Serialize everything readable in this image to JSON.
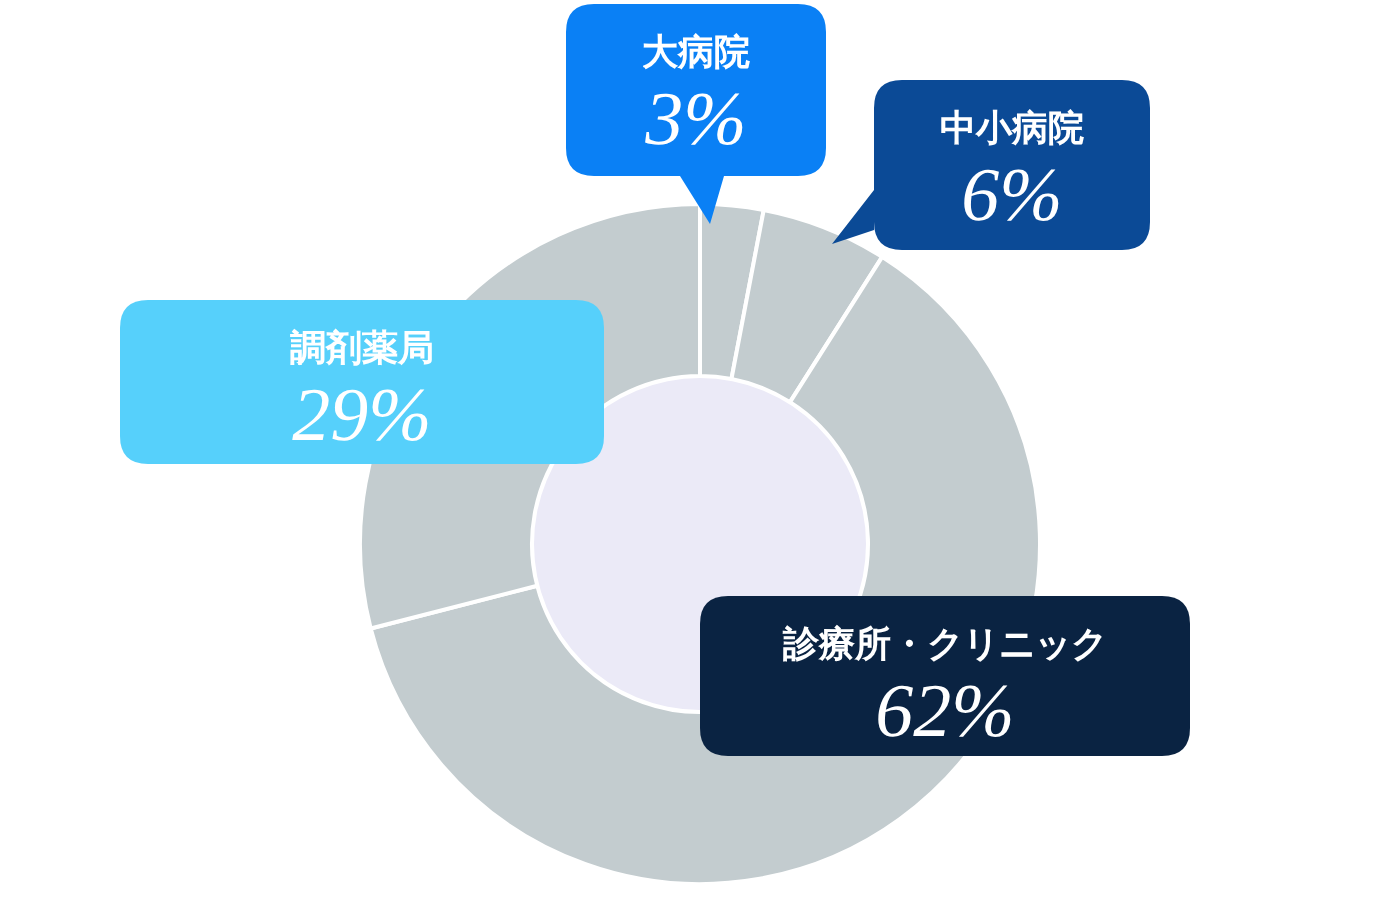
{
  "chart_data": {
    "type": "donut",
    "categories": [
      "大病院",
      "中小病院",
      "診療所・クリニック",
      "調剤薬局"
    ],
    "values": [
      3,
      6,
      62,
      29
    ],
    "colors": [
      "#c3cccf",
      "#c3cccf",
      "#c3cccf",
      "#c3cccf"
    ],
    "value_labels": [
      "3%",
      "6%",
      "62%",
      "29%"
    ]
  }
}
